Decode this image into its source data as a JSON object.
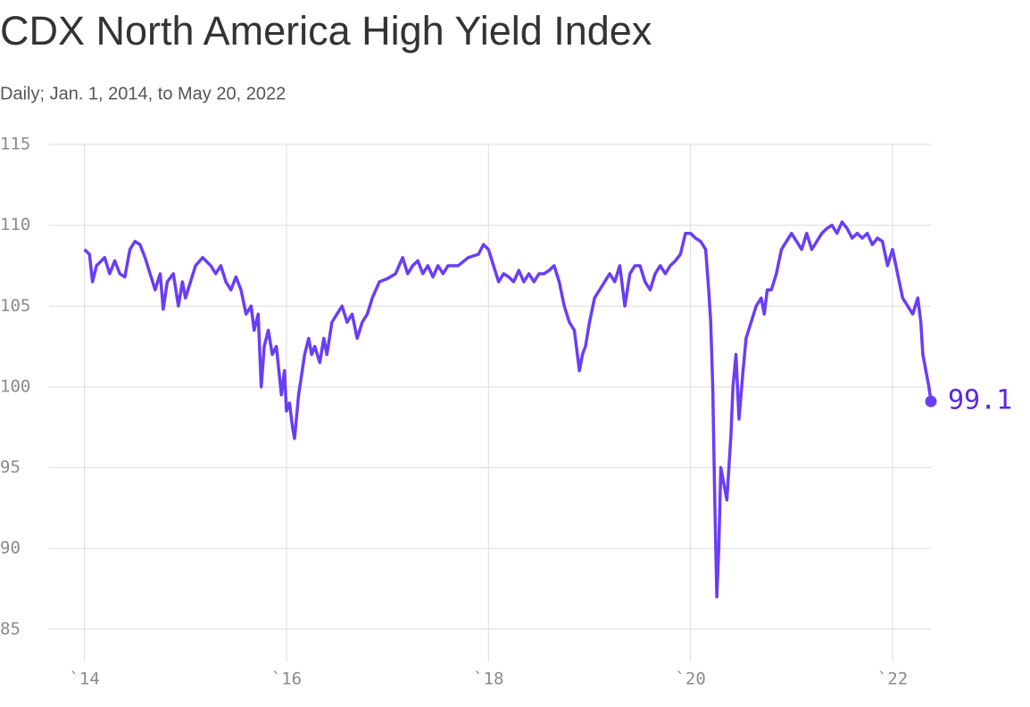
{
  "chart_data": {
    "type": "line",
    "title": "CDX North America High Yield Index",
    "subtitle": "Daily; Jan. 1, 2014, to May 20, 2022",
    "end_label": "99.1",
    "xlim": [
      2013.65,
      2022.38
    ],
    "xticks": [
      {
        "value": 2014,
        "label": "`14"
      },
      {
        "value": 2016,
        "label": "`16"
      },
      {
        "value": 2018,
        "label": "`18"
      },
      {
        "value": 2020,
        "label": "`20"
      },
      {
        "value": 2022,
        "label": "`22"
      }
    ],
    "ylim": [
      83,
      115
    ],
    "yticks": [
      85,
      90,
      95,
      100,
      105,
      110,
      115
    ],
    "grid": true,
    "x": [
      2014.0,
      2014.05,
      2014.08,
      2014.12,
      2014.2,
      2014.25,
      2014.3,
      2014.35,
      2014.4,
      2014.45,
      2014.5,
      2014.55,
      2014.6,
      2014.65,
      2014.7,
      2014.75,
      2014.78,
      2014.82,
      2014.88,
      2014.93,
      2014.97,
      2015.0,
      2015.05,
      2015.1,
      2015.17,
      2015.25,
      2015.3,
      2015.35,
      2015.4,
      2015.45,
      2015.5,
      2015.55,
      2015.6,
      2015.65,
      2015.68,
      2015.72,
      2015.75,
      2015.78,
      2015.82,
      2015.86,
      2015.9,
      2015.95,
      2015.98,
      2016.0,
      2016.03,
      2016.06,
      2016.08,
      2016.12,
      2016.18,
      2016.22,
      2016.25,
      2016.28,
      2016.33,
      2016.37,
      2016.4,
      2016.45,
      2016.5,
      2016.55,
      2016.6,
      2016.65,
      2016.7,
      2016.75,
      2016.8,
      2016.85,
      2016.92,
      2017.0,
      2017.08,
      2017.15,
      2017.2,
      2017.25,
      2017.3,
      2017.35,
      2017.4,
      2017.45,
      2017.5,
      2017.55,
      2017.6,
      2017.7,
      2017.8,
      2017.9,
      2017.95,
      2018.0,
      2018.05,
      2018.1,
      2018.15,
      2018.2,
      2018.25,
      2018.3,
      2018.35,
      2018.4,
      2018.45,
      2018.5,
      2018.55,
      2018.6,
      2018.65,
      2018.7,
      2018.75,
      2018.8,
      2018.85,
      2018.9,
      2018.93,
      2018.96,
      2019.0,
      2019.05,
      2019.1,
      2019.15,
      2019.2,
      2019.25,
      2019.3,
      2019.35,
      2019.4,
      2019.45,
      2019.5,
      2019.55,
      2019.6,
      2019.65,
      2019.7,
      2019.75,
      2019.8,
      2019.85,
      2019.9,
      2019.95,
      2020.0,
      2020.05,
      2020.1,
      2020.15,
      2020.18,
      2020.2,
      2020.22,
      2020.24,
      2020.26,
      2020.28,
      2020.3,
      2020.33,
      2020.36,
      2020.4,
      2020.42,
      2020.45,
      2020.48,
      2020.52,
      2020.55,
      2020.6,
      2020.65,
      2020.7,
      2020.73,
      2020.76,
      2020.8,
      2020.85,
      2020.9,
      2021.0,
      2021.05,
      2021.1,
      2021.15,
      2021.2,
      2021.25,
      2021.3,
      2021.35,
      2021.4,
      2021.45,
      2021.5,
      2021.55,
      2021.6,
      2021.65,
      2021.7,
      2021.75,
      2021.8,
      2021.85,
      2021.9,
      2021.95,
      2022.0,
      2022.05,
      2022.1,
      2022.15,
      2022.2,
      2022.25,
      2022.28,
      2022.3,
      2022.33,
      2022.36,
      2022.38
    ],
    "series": [
      {
        "color": "#6a3df7",
        "values": [
          108.5,
          108.2,
          106.5,
          107.5,
          108,
          107,
          107.8,
          107,
          106.8,
          108.5,
          109,
          108.8,
          108,
          107,
          106,
          107,
          104.8,
          106.5,
          107,
          105,
          106.5,
          105.5,
          106.5,
          107.5,
          108,
          107.5,
          107,
          107.5,
          106.5,
          106,
          106.8,
          106,
          104.5,
          105,
          103.5,
          104.5,
          100,
          102.5,
          103.5,
          102,
          102.5,
          99.5,
          101,
          98.5,
          99,
          97.5,
          96.8,
          99.5,
          102,
          103,
          102,
          102.5,
          101.5,
          103,
          102,
          104,
          104.5,
          105,
          104,
          104.5,
          103,
          104,
          104.5,
          105.5,
          106.5,
          106.7,
          107,
          108,
          107,
          107.5,
          107.8,
          107,
          107.5,
          106.8,
          107.5,
          107,
          107.5,
          107.5,
          108,
          108.2,
          108.8,
          108.5,
          107.5,
          106.5,
          107,
          106.8,
          106.5,
          107.2,
          106.5,
          107,
          106.5,
          107,
          107,
          107.2,
          107.5,
          106.5,
          105,
          104,
          103.5,
          101,
          102,
          102.5,
          104,
          105.5,
          106,
          106.5,
          107,
          106.5,
          107.5,
          105,
          107,
          107.5,
          107.5,
          106.5,
          106,
          107,
          107.5,
          107,
          107.5,
          107.8,
          108.2,
          109.5,
          109.5,
          109.2,
          109,
          108.5,
          106,
          104,
          100,
          93,
          87,
          90,
          95,
          94,
          93,
          97,
          100,
          102,
          98,
          101,
          103,
          104,
          105,
          105.5,
          104.5,
          106,
          106,
          107,
          108.5,
          109.5,
          109,
          108.5,
          109.5,
          108.5,
          109,
          109.5,
          109.8,
          110,
          109.5,
          110.2,
          109.8,
          109.2,
          109.5,
          109.2,
          109.5,
          108.8,
          109.2,
          109,
          107.5,
          108.5,
          107,
          105.5,
          105,
          104.5,
          105.5,
          104,
          102,
          101,
          100,
          99.1
        ]
      }
    ]
  }
}
